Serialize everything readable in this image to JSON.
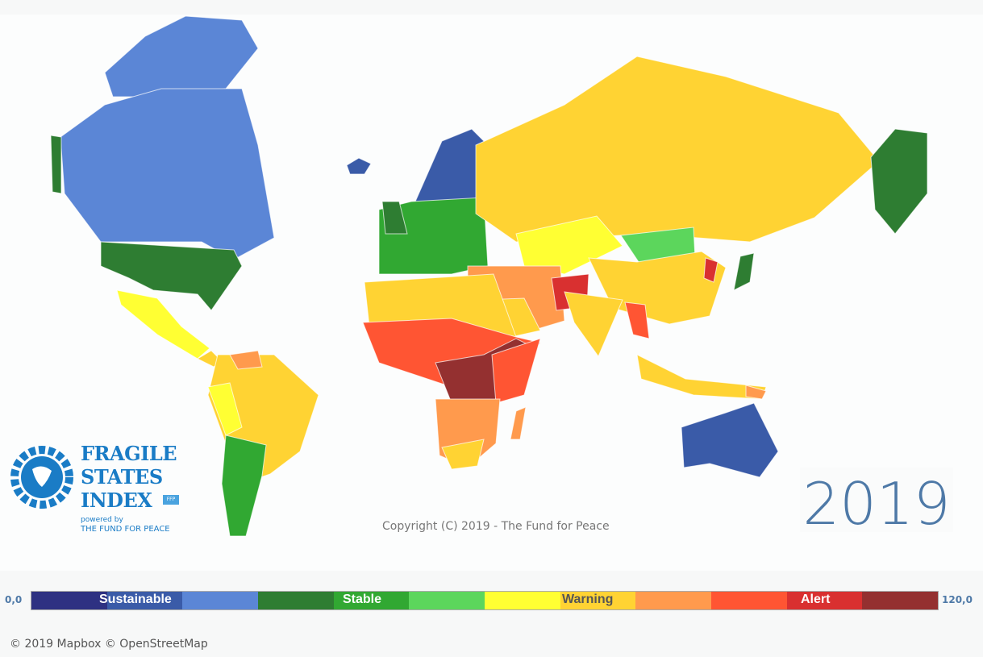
{
  "year": "2019",
  "copyright": "Copyright (C) 2019 - The Fund for Peace",
  "attribution": "© 2019 Mapbox  © OpenStreetMap",
  "logo": {
    "line1": "FRAGILE",
    "line2": "STATES",
    "line3": "INDEX",
    "badge": "FFP",
    "powered": "powered by",
    "org": "THE FUND FOR PEACE"
  },
  "legend": {
    "min": "0,0",
    "max": "120,0",
    "labels": [
      "Sustainable",
      "Stable",
      "Warning",
      "Alert"
    ],
    "colors": [
      "#2e3182",
      "#3a5ba8",
      "#5b86d6",
      "#2e7d32",
      "#31a832",
      "#5cd65c",
      "#ffff33",
      "#ffd333",
      "#ff9a4d",
      "#ff5533",
      "#d93030",
      "#943030"
    ]
  }
}
